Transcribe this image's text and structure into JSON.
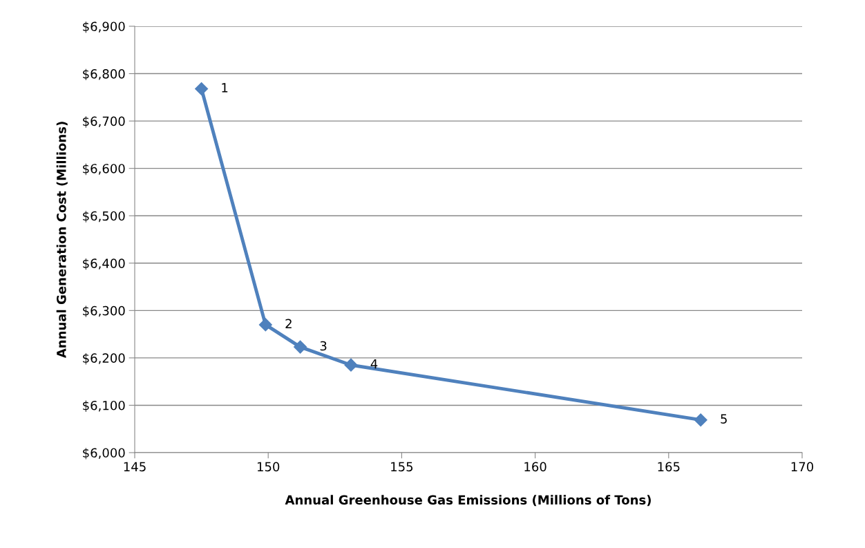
{
  "chart_data": {
    "type": "line",
    "xlabel": "Annual Greenhouse Gas Emissions (Millions of Tons)",
    "ylabel": "Annual Generation Cost (Millions)",
    "x": [
      147.5,
      149.9,
      151.2,
      153.1,
      166.2
    ],
    "series": [
      {
        "color": "#4f81bd",
        "values": [
          6768,
          6270,
          6223,
          6185,
          6069
        ]
      }
    ],
    "annotations": [
      {
        "text": "1",
        "x": 147.5,
        "y": 6768
      },
      {
        "text": "2",
        "x": 149.9,
        "y": 6270
      },
      {
        "text": "3",
        "x": 151.2,
        "y": 6223
      },
      {
        "text": "4",
        "x": 153.1,
        "y": 6185
      },
      {
        "text": "5",
        "x": 166.2,
        "y": 6069
      }
    ],
    "xlim": [
      145,
      170
    ],
    "xticks": [
      145,
      150,
      155,
      160,
      165,
      170
    ],
    "ylim": [
      6000,
      6900
    ],
    "yticks": [
      {
        "value": 6000,
        "label": "$6,000"
      },
      {
        "value": 6100,
        "label": "$6,100"
      },
      {
        "value": 6200,
        "label": "$6,200"
      },
      {
        "value": 6300,
        "label": "$6,300"
      },
      {
        "value": 6400,
        "label": "$6,400"
      },
      {
        "value": 6500,
        "label": "$6,500"
      },
      {
        "value": 6600,
        "label": "$6,600"
      },
      {
        "value": 6700,
        "label": "$6,700"
      },
      {
        "value": 6800,
        "label": "$6,800"
      },
      {
        "value": 6900,
        "label": "$6,900"
      }
    ],
    "grid": "y",
    "marker": "diamond",
    "line_style": "solid"
  }
}
